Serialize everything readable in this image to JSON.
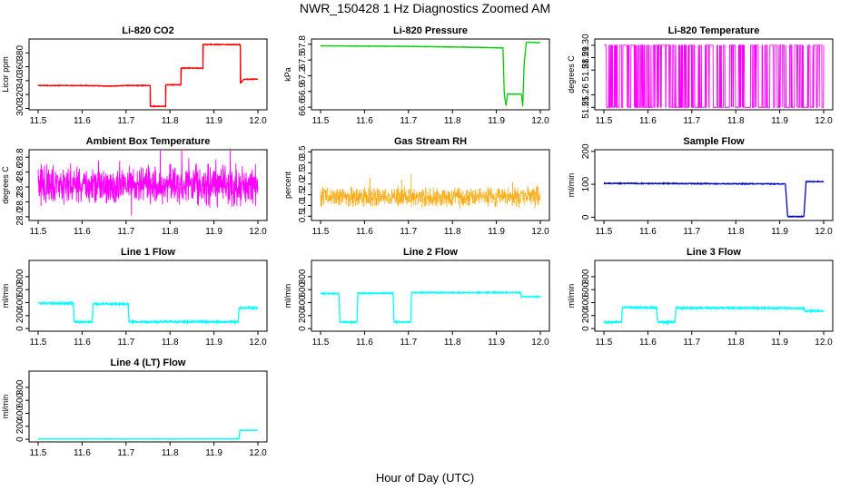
{
  "figure": {
    "title": "NWR_150428  1 Hz Diagnostics Zoomed AM",
    "xlabel": "Hour of Day (UTC)"
  },
  "chart_data": [
    {
      "type": "line",
      "title": "Li-820 CO2",
      "ylabel": "Licor ppm",
      "color": "#ff0000",
      "xlim": [
        11.5,
        12.0
      ],
      "ylim": [
        298,
        400
      ],
      "xticks": [
        "11.5",
        "11.6",
        "11.7",
        "11.8",
        "11.9",
        "12.0"
      ],
      "yticks": [
        {
          "v": 300,
          "t": "300"
        },
        {
          "v": 320,
          "t": "320"
        },
        {
          "v": 340,
          "t": "340"
        },
        {
          "v": 360,
          "t": "360"
        },
        {
          "v": 380,
          "t": "380"
        }
      ],
      "kind": "steps",
      "noise": 0.5,
      "points": [
        [
          11.5,
          333
        ],
        [
          11.61,
          333
        ],
        [
          11.66,
          332
        ],
        [
          11.705,
          333
        ],
        [
          11.755,
          333
        ],
        [
          11.755,
          303
        ],
        [
          11.79,
          303
        ],
        [
          11.79,
          334
        ],
        [
          11.825,
          334
        ],
        [
          11.825,
          358
        ],
        [
          11.875,
          358
        ],
        [
          11.875,
          392
        ],
        [
          11.96,
          392
        ],
        [
          11.96,
          336
        ],
        [
          11.968,
          342
        ],
        [
          12.0,
          342
        ]
      ]
    },
    {
      "type": "line",
      "title": "Li-820 Pressure",
      "ylabel": "kPa",
      "color": "#00cc00",
      "xlim": [
        11.5,
        12.0
      ],
      "ylim": [
        66.55,
        67.9
      ],
      "xticks": [
        "11.5",
        "11.6",
        "11.7",
        "11.8",
        "11.9",
        "12.0"
      ],
      "yticks": [
        {
          "v": 66.6,
          "t": "66.6"
        },
        {
          "v": 66.9,
          "t": "66.9"
        },
        {
          "v": 67.2,
          "t": "67.2"
        },
        {
          "v": 67.5,
          "t": "67.5"
        },
        {
          "v": 67.8,
          "t": "67.8"
        }
      ],
      "kind": "steps",
      "noise": 0.004,
      "points": [
        [
          11.5,
          67.77
        ],
        [
          11.7,
          67.76
        ],
        [
          11.86,
          67.74
        ],
        [
          11.915,
          67.73
        ],
        [
          11.918,
          66.85
        ],
        [
          11.922,
          66.62
        ],
        [
          11.925,
          66.85
        ],
        [
          11.957,
          66.85
        ],
        [
          11.96,
          66.62
        ],
        [
          11.963,
          67.4
        ],
        [
          11.968,
          67.84
        ],
        [
          12.0,
          67.83
        ]
      ]
    },
    {
      "type": "line",
      "title": "Li-820 Temperature",
      "ylabel": "degrees C",
      "color": "#ff00ff",
      "xlim": [
        11.5,
        12.0
      ],
      "ylim": [
        51.248,
        51.305
      ],
      "xticks": [
        "11.5",
        "11.6",
        "11.7",
        "11.8",
        "11.9",
        "12.0"
      ],
      "yticks": [
        {
          "v": 51.25,
          "t": "51.25"
        },
        {
          "v": 51.26,
          "t": "51.26"
        },
        {
          "v": 51.28,
          "t": "51.28"
        },
        {
          "v": 51.29,
          "t": "51.29"
        },
        {
          "v": 51.3,
          "t": "51.30"
        }
      ],
      "kind": "binary",
      "lo": 51.25,
      "hi": 51.3
    },
    {
      "type": "line",
      "title": "Ambient Box Temperature",
      "ylabel": "degrees C",
      "color": "#ff00ff",
      "xlim": [
        11.5,
        12.0
      ],
      "ylim": [
        27.95,
        28.9
      ],
      "xticks": [
        "11.5",
        "11.6",
        "11.7",
        "11.8",
        "11.9",
        "12.0"
      ],
      "yticks": [
        {
          "v": 28.0,
          "t": "28.0"
        },
        {
          "v": 28.2,
          "t": "28.2"
        },
        {
          "v": 28.4,
          "t": "28.4"
        },
        {
          "v": 28.6,
          "t": "28.6"
        },
        {
          "v": 28.8,
          "t": "28.8"
        }
      ],
      "kind": "noise",
      "mid": 28.43,
      "amp": 0.32
    },
    {
      "type": "line",
      "title": "Gas Stream RH",
      "ylabel": "percent",
      "color": "#ffa500",
      "xlim": [
        11.5,
        12.0
      ],
      "ylim": [
        0.3,
        3.6
      ],
      "xticks": [
        "11.5",
        "11.6",
        "11.7",
        "11.8",
        "11.9",
        "12.0"
      ],
      "yticks": [
        {
          "v": 0.5,
          "t": "0.5"
        },
        {
          "v": 1.0,
          "t": "1.0"
        },
        {
          "v": 1.5,
          "t": "1.5"
        },
        {
          "v": 2.0,
          "t": "2.0"
        },
        {
          "v": 2.5,
          "t": "2.5"
        },
        {
          "v": 3.0,
          "t": "3.0"
        },
        {
          "v": 3.5,
          "t": "3.5"
        }
      ],
      "kind": "noise",
      "mid": 1.4,
      "amp": 0.55,
      "dots": true
    },
    {
      "type": "line",
      "title": "Sample Flow",
      "ylabel": "ml/min",
      "color": "#0000cc",
      "xlim": [
        11.5,
        12.0
      ],
      "ylim": [
        -10,
        205
      ],
      "xticks": [
        "11.5",
        "11.6",
        "11.7",
        "11.8",
        "11.9",
        "12.0"
      ],
      "yticks": [
        {
          "v": 0,
          "t": "0"
        },
        {
          "v": 100,
          "t": "100"
        },
        {
          "v": 200,
          "t": "200"
        }
      ],
      "kind": "steps",
      "noise": 1.2,
      "points": [
        [
          11.5,
          103
        ],
        [
          11.7,
          102
        ],
        [
          11.913,
          101
        ],
        [
          11.918,
          2
        ],
        [
          11.955,
          2
        ],
        [
          11.96,
          108
        ],
        [
          12.0,
          108
        ]
      ]
    },
    {
      "type": "line",
      "title": "Line 1 Flow",
      "ylabel": "ml/min",
      "color": "#00ffff",
      "xlim": [
        11.5,
        12.0
      ],
      "ylim": [
        -40,
        1050
      ],
      "xticks": [
        "11.5",
        "11.6",
        "11.7",
        "11.8",
        "11.9",
        "12.0"
      ],
      "yticks": [
        {
          "v": 0,
          "t": "0"
        },
        {
          "v": 200,
          "t": "200"
        },
        {
          "v": 400,
          "t": "400"
        },
        {
          "v": 600,
          "t": "600"
        },
        {
          "v": 800,
          "t": "800"
        }
      ],
      "kind": "steps",
      "noise": 12,
      "points": [
        [
          11.5,
          390
        ],
        [
          11.58,
          390
        ],
        [
          11.582,
          100
        ],
        [
          11.623,
          100
        ],
        [
          11.625,
          380
        ],
        [
          11.705,
          380
        ],
        [
          11.707,
          105
        ],
        [
          11.955,
          105
        ],
        [
          11.957,
          320
        ],
        [
          12.0,
          320
        ]
      ]
    },
    {
      "type": "line",
      "title": "Line 2 Flow",
      "ylabel": "ml/min",
      "color": "#00ffff",
      "xlim": [
        11.5,
        12.0
      ],
      "ylim": [
        -40,
        1050
      ],
      "xticks": [
        "11.5",
        "11.6",
        "11.7",
        "11.8",
        "11.9",
        "12.0"
      ],
      "yticks": [
        {
          "v": 0,
          "t": "0"
        },
        {
          "v": 200,
          "t": "200"
        },
        {
          "v": 400,
          "t": "400"
        },
        {
          "v": 600,
          "t": "600"
        },
        {
          "v": 800,
          "t": "800"
        }
      ],
      "kind": "steps",
      "noise": 8,
      "points": [
        [
          11.5,
          540
        ],
        [
          11.542,
          540
        ],
        [
          11.544,
          100
        ],
        [
          11.583,
          100
        ],
        [
          11.585,
          545
        ],
        [
          11.665,
          545
        ],
        [
          11.667,
          100
        ],
        [
          11.705,
          100
        ],
        [
          11.707,
          555
        ],
        [
          11.955,
          555
        ],
        [
          11.957,
          490
        ],
        [
          12.0,
          490
        ]
      ]
    },
    {
      "type": "line",
      "title": "Line 3 Flow",
      "ylabel": "ml/min",
      "color": "#00ffff",
      "xlim": [
        11.5,
        12.0
      ],
      "ylim": [
        -40,
        1050
      ],
      "xticks": [
        "11.5",
        "11.6",
        "11.7",
        "11.8",
        "11.9",
        "12.0"
      ],
      "yticks": [
        {
          "v": 0,
          "t": "0"
        },
        {
          "v": 200,
          "t": "200"
        },
        {
          "v": 400,
          "t": "400"
        },
        {
          "v": 600,
          "t": "600"
        },
        {
          "v": 800,
          "t": "800"
        }
      ],
      "kind": "steps",
      "noise": 12,
      "points": [
        [
          11.5,
          100
        ],
        [
          11.54,
          100
        ],
        [
          11.542,
          330
        ],
        [
          11.62,
          320
        ],
        [
          11.622,
          100
        ],
        [
          11.662,
          100
        ],
        [
          11.664,
          320
        ],
        [
          11.955,
          315
        ],
        [
          11.957,
          270
        ],
        [
          12.0,
          270
        ]
      ]
    },
    {
      "type": "line",
      "title": "Line 4 (LT) Flow",
      "ylabel": "ml/min",
      "color": "#00ffff",
      "xlim": [
        11.5,
        12.0
      ],
      "ylim": [
        -40,
        1050
      ],
      "xticks": [
        "11.5",
        "11.6",
        "11.7",
        "11.8",
        "11.9",
        "12.0"
      ],
      "yticks": [
        {
          "v": 0,
          "t": "0"
        },
        {
          "v": 200,
          "t": "200"
        },
        {
          "v": 400,
          "t": "400"
        },
        {
          "v": 600,
          "t": "600"
        },
        {
          "v": 800,
          "t": "800"
        }
      ],
      "kind": "steps",
      "noise": 3,
      "points": [
        [
          11.5,
          5
        ],
        [
          11.957,
          5
        ],
        [
          11.959,
          140
        ],
        [
          12.0,
          140
        ]
      ]
    }
  ]
}
